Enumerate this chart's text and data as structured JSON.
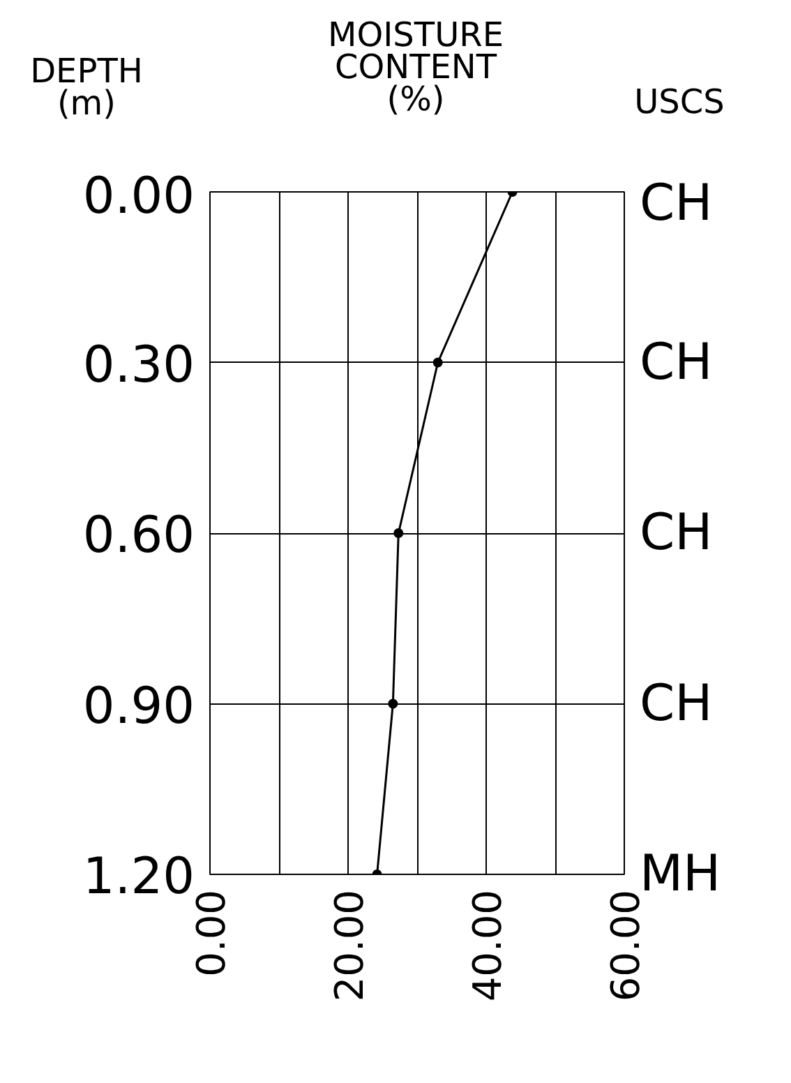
{
  "chart_data": {
    "type": "line",
    "title": "MOISTURE CONTENT (%)",
    "ylabel": "DEPTH (m)",
    "x": [
      0.0,
      0.3,
      0.6,
      0.9,
      1.2
    ],
    "series": [
      {
        "color": "#000000",
        "values": [
          43.8,
          33.0,
          27.3,
          26.5,
          24.2
        ]
      }
    ],
    "orientation": "horizontal",
    "marker": "circle",
    "line_style": "solid",
    "grid": true,
    "xlim": [
      0,
      60
    ],
    "xticks": [
      {
        "value": 0,
        "label": "0.00"
      },
      {
        "value": 10,
        "label": null
      },
      {
        "value": 20,
        "label": "20.00"
      },
      {
        "value": 30,
        "label": null
      },
      {
        "value": 40,
        "label": "40.00"
      },
      {
        "value": 50,
        "label": null
      },
      {
        "value": 60,
        "label": "60.00"
      }
    ],
    "ylim": [
      1.2,
      0
    ],
    "yticks": [
      {
        "value": 0,
        "label": "0.00"
      },
      {
        "value": 0.3,
        "label": "0.30"
      },
      {
        "value": 0.6,
        "label": "0.60"
      },
      {
        "value": 0.9,
        "label": "0.90"
      },
      {
        "value": 1.2,
        "label": "1.20"
      }
    ],
    "annotations": [
      "USCS",
      "CH",
      "CH",
      "CH",
      "CH",
      "MH"
    ]
  }
}
